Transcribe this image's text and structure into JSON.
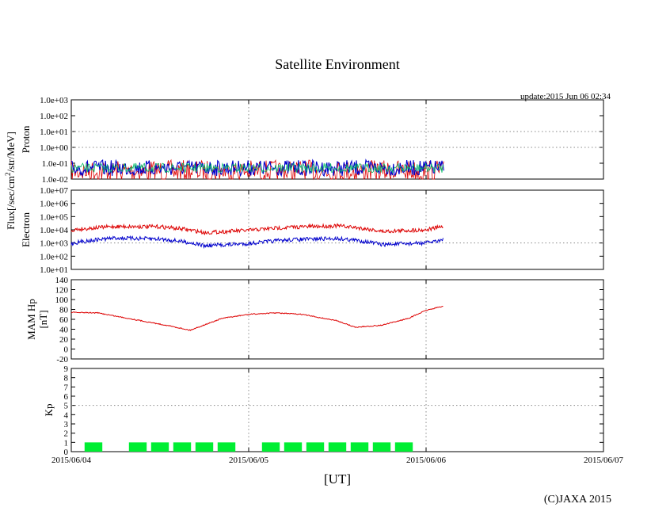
{
  "title": "Satellite Environment",
  "update": "update:2015 Jun 06 02:34",
  "copyright": "(C)JAXA 2015",
  "y_shared_label": "Flux[/sec/cm²/str/MeV]",
  "chart_data": [
    {
      "type": "line",
      "panel": "proton",
      "ylabel": "Proton",
      "yscale": "log",
      "ylim": [
        0.01,
        1000
      ],
      "y_ticks": [
        "1.0e-02",
        "1.0e-01",
        "1.0e+00",
        "1.0e+01",
        "1.0e+02",
        "1.0e+03"
      ],
      "colors": {
        "high": "#0000cc",
        "mid": "#00bb66",
        "low": "#dd0000"
      },
      "x_range": [
        "2015/06/04",
        "2015/06/06 02:34"
      ],
      "approx_level": 0.05
    },
    {
      "type": "line",
      "panel": "electron",
      "ylabel": "Electron",
      "yscale": "log",
      "ylim": [
        10,
        10000000
      ],
      "y_ticks": [
        "1.0e+01",
        "1.0e+02",
        "1.0e+03",
        "1.0e+04",
        "1.0e+05",
        "1.0e+06",
        "1.0e+07"
      ],
      "series": [
        {
          "color": "#dd0000",
          "x_days": [
            0,
            0.25,
            0.5,
            0.75,
            1.0,
            1.25,
            1.5,
            1.75,
            2.0,
            2.1
          ],
          "values": [
            9500,
            18000,
            17000,
            6000,
            9000,
            16000,
            20000,
            7500,
            10000,
            17000
          ]
        },
        {
          "color": "#0000cc",
          "x_days": [
            0,
            0.25,
            0.5,
            0.75,
            1.0,
            1.25,
            1.5,
            1.75,
            2.0,
            2.1
          ],
          "values": [
            900,
            2400,
            2000,
            600,
            900,
            1800,
            2200,
            750,
            1000,
            1800
          ]
        }
      ]
    },
    {
      "type": "line",
      "panel": "hp",
      "ylabel_lines": [
        "MAM Hp",
        "[nT]"
      ],
      "ylim": [
        -20,
        140
      ],
      "y_ticks": [
        -20,
        0,
        20,
        40,
        60,
        80,
        100,
        120,
        140
      ],
      "series": [
        {
          "color": "#dd0000",
          "x_days": [
            0,
            0.15,
            0.35,
            0.55,
            0.67,
            0.85,
            1.0,
            1.15,
            1.3,
            1.5,
            1.6,
            1.75,
            1.9,
            2.0,
            2.1
          ],
          "values": [
            74,
            73,
            60,
            47,
            38,
            62,
            70,
            73,
            70,
            57,
            44,
            48,
            62,
            78,
            87
          ]
        }
      ]
    },
    {
      "type": "bar",
      "panel": "kp",
      "ylabel": "Kp",
      "ylim": [
        0,
        9
      ],
      "y_ticks": [
        0,
        1,
        2,
        3,
        4,
        5,
        6,
        7,
        8,
        9
      ],
      "color": "#00ee33",
      "bar_width_days": 0.1,
      "x_days": [
        0.125,
        0.375,
        0.5,
        0.625,
        0.75,
        0.875,
        1.125,
        1.25,
        1.375,
        1.5,
        1.625,
        1.75,
        1.875
      ],
      "values": [
        1,
        1,
        1,
        1,
        1,
        1,
        1,
        1,
        1,
        1,
        1,
        1,
        1
      ]
    }
  ],
  "x_axis": {
    "label": "[UT]",
    "ticks": [
      "2015/06/04",
      "2015/06/05",
      "2015/06/06",
      "2015/06/07"
    ],
    "days": [
      0,
      1,
      2,
      3
    ]
  }
}
